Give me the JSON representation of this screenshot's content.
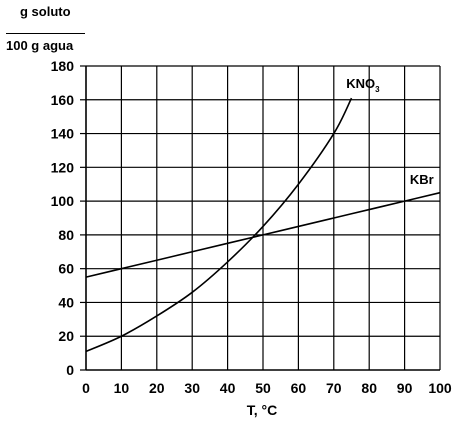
{
  "chart_data": {
    "type": "line",
    "ylabel_numerator": "g soluto",
    "ylabel_denominator": "100 g agua",
    "xlabel": "T, °C",
    "xlim": [
      0,
      100
    ],
    "ylim": [
      0,
      180
    ],
    "x_ticks": [
      0,
      10,
      20,
      30,
      40,
      50,
      60,
      70,
      80,
      90,
      100
    ],
    "y_ticks": [
      0,
      20,
      40,
      60,
      80,
      100,
      120,
      140,
      160,
      180
    ],
    "grid": true,
    "series": [
      {
        "name": "KNO",
        "name_subscript": "3",
        "x": [
          0,
          10,
          20,
          30,
          40,
          50,
          60,
          70,
          75
        ],
        "y": [
          11,
          20,
          32,
          46,
          64,
          85,
          110,
          140,
          161
        ]
      },
      {
        "name": "KBr",
        "x": [
          0,
          10,
          20,
          30,
          40,
          50,
          60,
          70,
          80,
          90,
          100
        ],
        "y": [
          55,
          60,
          65,
          70,
          75,
          80,
          85,
          90,
          95,
          100,
          105
        ]
      }
    ]
  }
}
